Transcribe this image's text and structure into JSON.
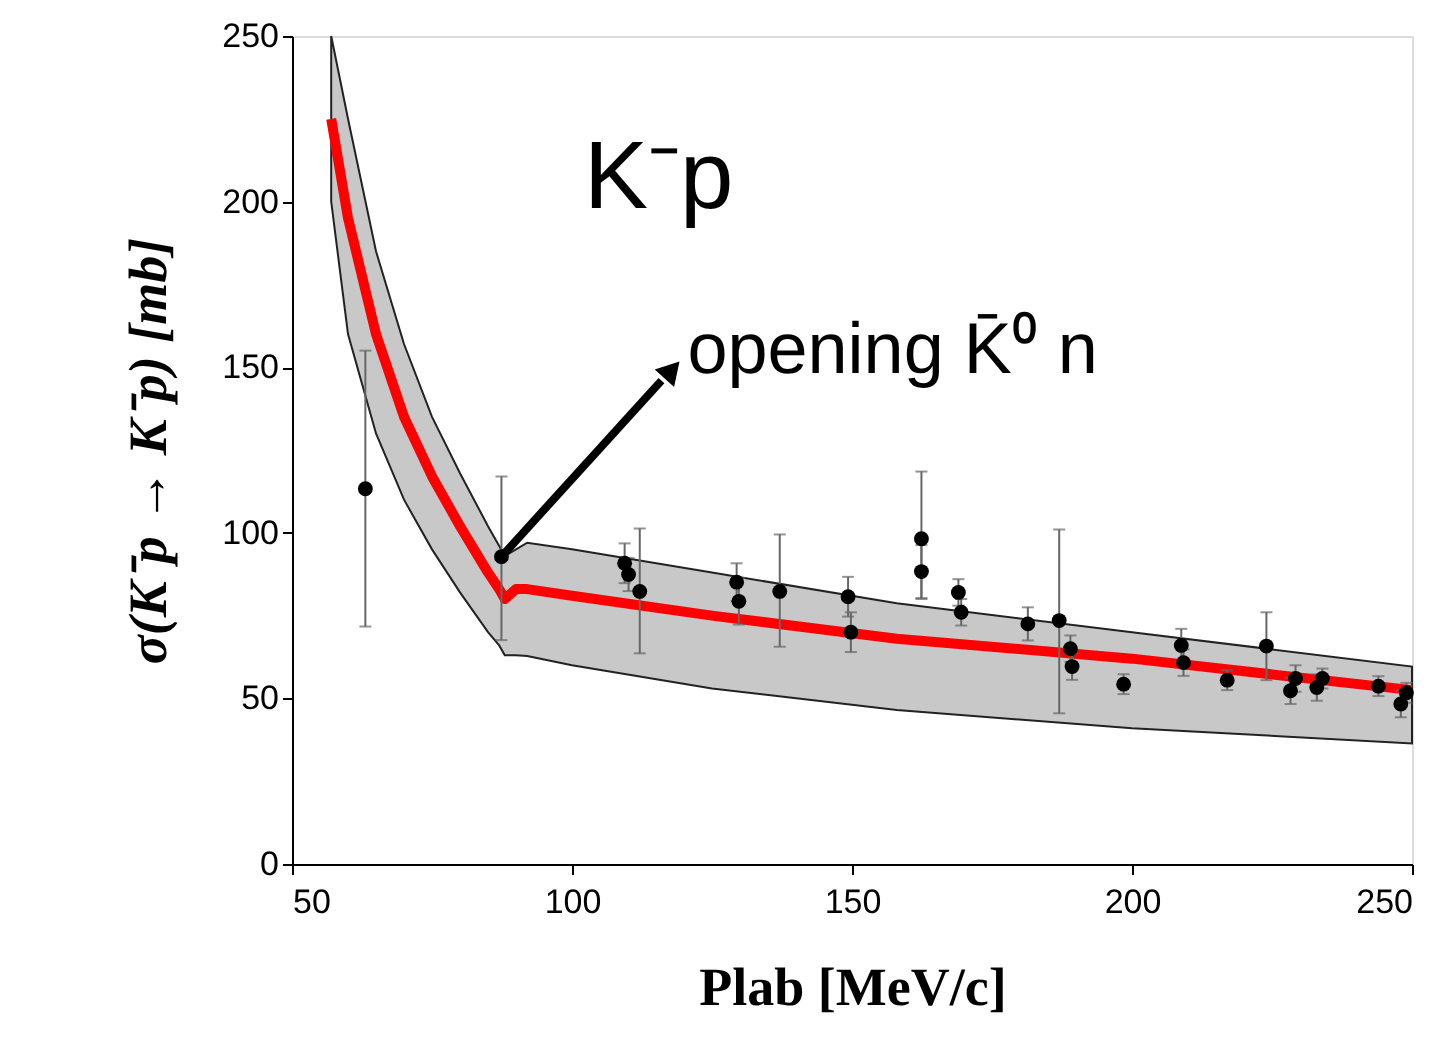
{
  "chart_data": {
    "type": "scatter",
    "xlabel": "Plab  [MeV/c]",
    "ylabel": "σ(K⁻p → K⁻p)  [mb]",
    "xlim": [
      50,
      250
    ],
    "xticks": [
      50,
      100,
      150,
      200,
      250
    ],
    "ylim": [
      0,
      250
    ],
    "yticks": [
      0,
      50,
      100,
      150,
      200,
      250
    ],
    "grid": false,
    "annotations": [
      "K⁻p",
      {
        "text": "opening K̄⁰ n",
        "x": 87.4,
        "y": 92.8
      }
    ],
    "series": [
      {
        "type": "line",
        "color": "#ff0000",
        "line_style": "solid",
        "marker": "none",
        "x": [
          57,
          60,
          65,
          70,
          75,
          80,
          85,
          87,
          88,
          90,
          92,
          100,
          125,
          158,
          200,
          250
        ],
        "values": [
          225,
          195,
          160,
          135,
          117,
          102,
          88,
          83,
          80,
          83,
          83,
          81,
          75,
          68,
          62,
          52.5
        ],
        "upper": [
          250,
          225,
          185,
          157,
          135,
          118,
          102,
          96,
          93,
          95,
          97,
          95,
          88,
          78.7,
          70,
          59.6
        ],
        "lower": [
          200,
          160,
          130,
          110,
          95,
          82,
          70,
          66,
          63,
          63,
          62.8,
          60,
          53,
          46.5,
          41,
          36.4
        ]
      },
      {
        "color": "#000000",
        "marker": "circle",
        "x": [
          63.1,
          87.4,
          109.4,
          110.1,
          112.1,
          129.4,
          129.8,
          137.1,
          149.3,
          149.8,
          162.4,
          162.4,
          169,
          169.5,
          181.4,
          187,
          189,
          189.3,
          198.5,
          208.8,
          209.2,
          217,
          224,
          228.3,
          229.2,
          233,
          234,
          244,
          248,
          249
        ],
        "values": [
          113.3,
          92.8,
          90.8,
          87.4,
          82.3,
          85.1,
          79.3,
          82.3,
          80.7,
          70,
          98.2,
          88.3,
          82,
          76,
          72.5,
          73.5,
          65,
          59.6,
          54.3,
          66,
          60.8,
          55.5,
          65.8,
          52.3,
          56,
          53.3,
          56,
          53.7,
          48.3,
          51.7
        ],
        "errors": [
          [
            71.7,
            155
          ],
          [
            67.6,
            117
          ],
          6,
          5,
          [
            63.6,
            101.3
          ],
          5.7,
          7,
          [
            65.6,
            99.5
          ],
          6,
          6,
          [
            80,
            118.5
          ],
          8,
          4,
          4,
          5,
          [
            45.5,
            101
          ],
          4,
          4,
          3,
          5,
          4,
          3,
          [
            55.5,
            76
          ],
          4,
          4,
          4,
          3,
          3,
          4,
          3
        ]
      }
    ]
  }
}
